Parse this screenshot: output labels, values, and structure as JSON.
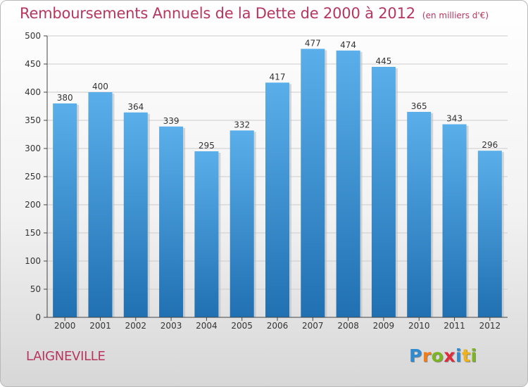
{
  "title": "Remboursements Annuels de la Dette de 2000 à 2012",
  "unit": "(en milliers d'€)",
  "place": "LAIGNEVILLE",
  "logo": {
    "letters": [
      "P",
      "r",
      "o",
      "x",
      "i",
      "t",
      "i"
    ],
    "colors": [
      "#2e8bd2",
      "#f07d1a",
      "#7cb51f",
      "#e02b3a",
      "#2e8bd2",
      "#f0b21a",
      "#7cb51f"
    ]
  },
  "colors": {
    "title": "#b6365f",
    "bar_top": "#5aafea",
    "bar_bottom": "#2070b2",
    "axis": "#444444",
    "grid": "#cccccc"
  },
  "chart_data": {
    "type": "bar",
    "categories": [
      "2000",
      "2001",
      "2002",
      "2003",
      "2004",
      "2005",
      "2006",
      "2007",
      "2008",
      "2009",
      "2010",
      "2011",
      "2012"
    ],
    "values": [
      380,
      400,
      364,
      339,
      295,
      332,
      417,
      477,
      474,
      445,
      365,
      343,
      296
    ],
    "ylim": [
      0,
      500
    ],
    "yticks": [
      0,
      50,
      100,
      150,
      200,
      250,
      300,
      350,
      400,
      450,
      500
    ],
    "grid": true,
    "data_labels": true
  }
}
